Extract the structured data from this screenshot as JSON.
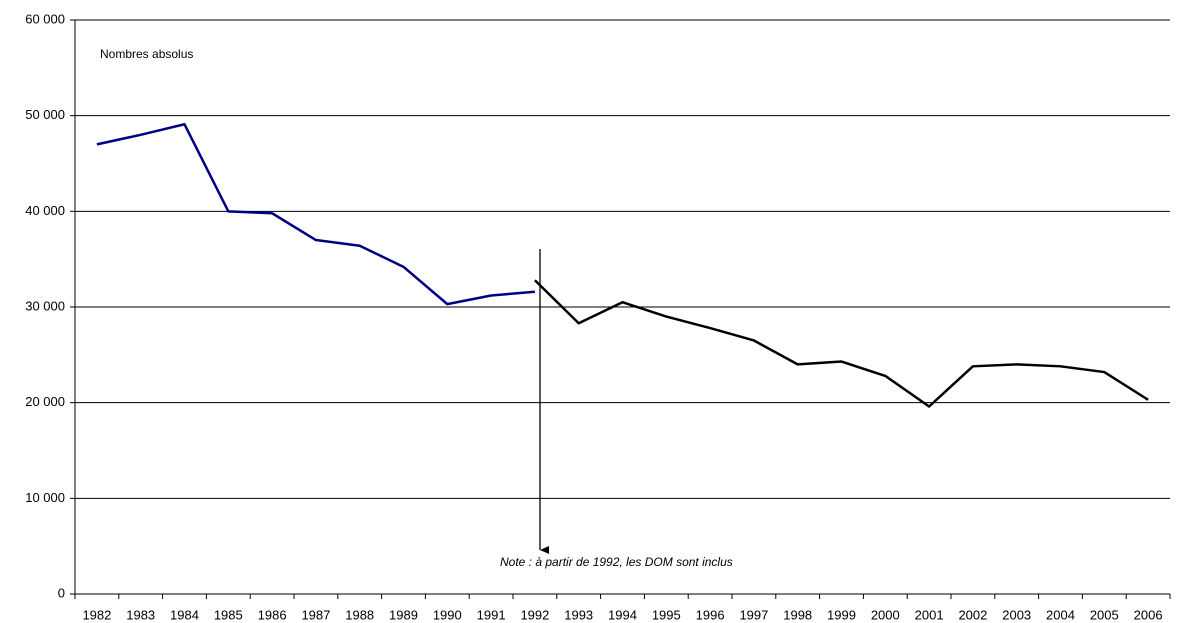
{
  "chart_data": {
    "type": "line",
    "annotations": [
      "Nombres absolus",
      "Note : à partir de 1992, les DOM sont inclus"
    ],
    "categories": [
      "1982",
      "1983",
      "1984",
      "1985",
      "1986",
      "1987",
      "1988",
      "1989",
      "1990",
      "1991",
      "1992",
      "1993",
      "1994",
      "1995",
      "1996",
      "1997",
      "1998",
      "1999",
      "2000",
      "2001",
      "2002",
      "2003",
      "2004",
      "2005",
      "2006"
    ],
    "series": [
      {
        "color": "#000080",
        "values": [
          47000,
          48000,
          49100,
          40000,
          39800,
          37000,
          36400,
          34200,
          30300,
          31200,
          31600,
          null,
          null,
          null,
          null,
          null,
          null,
          null,
          null,
          null,
          null,
          null,
          null,
          null,
          null
        ]
      },
      {
        "color": "#000000",
        "values": [
          null,
          null,
          null,
          null,
          null,
          null,
          null,
          null,
          null,
          null,
          32800,
          28300,
          30500,
          29000,
          27800,
          26500,
          24000,
          24300,
          22800,
          19600,
          23800,
          24000,
          23800,
          23200,
          20300
        ]
      }
    ],
    "ylim": [
      0,
      60000
    ],
    "yticks": [
      0,
      {
        "value": 10000,
        "label": "10 000"
      },
      {
        "value": 20000,
        "label": "20 000"
      },
      {
        "value": 30000,
        "label": "30 000"
      },
      {
        "value": 40000,
        "label": "40 000"
      },
      {
        "value": 50000,
        "label": "50 000"
      },
      {
        "value": 60000,
        "label": "60 000"
      }
    ],
    "grid": true
  }
}
